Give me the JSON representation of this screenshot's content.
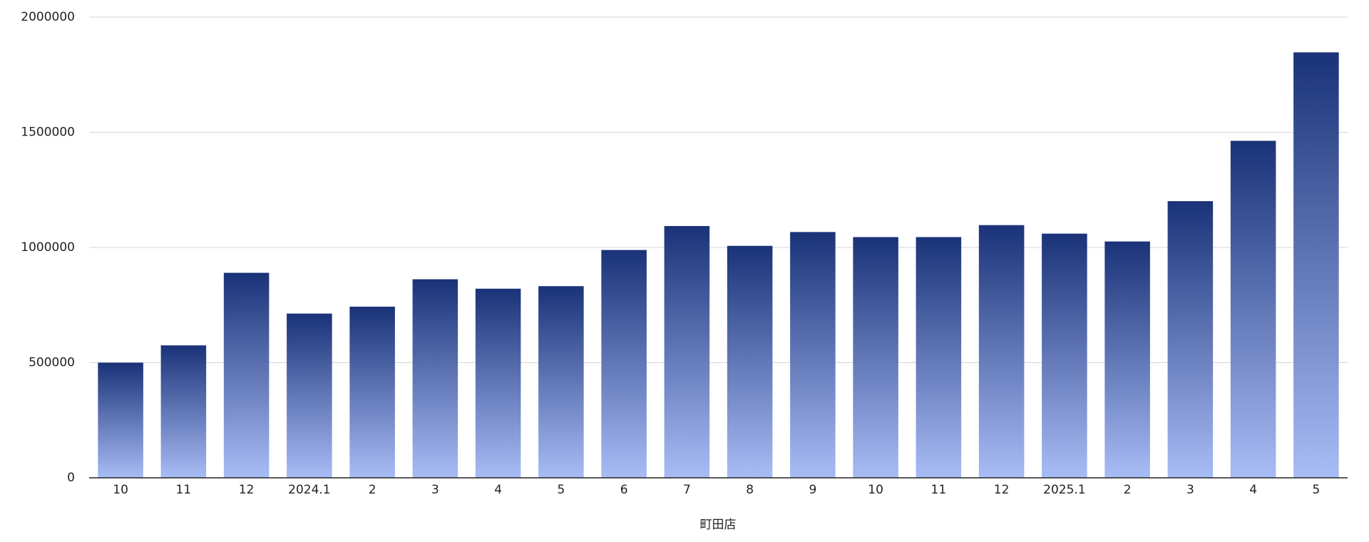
{
  "chart_data": {
    "type": "bar",
    "x_label": "町田店",
    "categories": [
      "10",
      "11",
      "12",
      "2024.1",
      "2",
      "3",
      "4",
      "5",
      "6",
      "7",
      "8",
      "9",
      "10",
      "11",
      "12",
      "2025.1",
      "2",
      "3",
      "4",
      "5"
    ],
    "values": [
      500000,
      575000,
      890000,
      713000,
      743000,
      862000,
      821000,
      832000,
      989000,
      1093000,
      1007000,
      1067000,
      1045000,
      1045000,
      1097000,
      1060000,
      1026000,
      1201000,
      1463000,
      1847000
    ],
    "color": "#1a3278",
    "color_bottom": "#a8bcf5",
    "ylim": [
      0,
      2000000
    ],
    "yticks": [
      0,
      500000,
      1000000,
      1500000,
      2000000
    ],
    "grid": true
  }
}
